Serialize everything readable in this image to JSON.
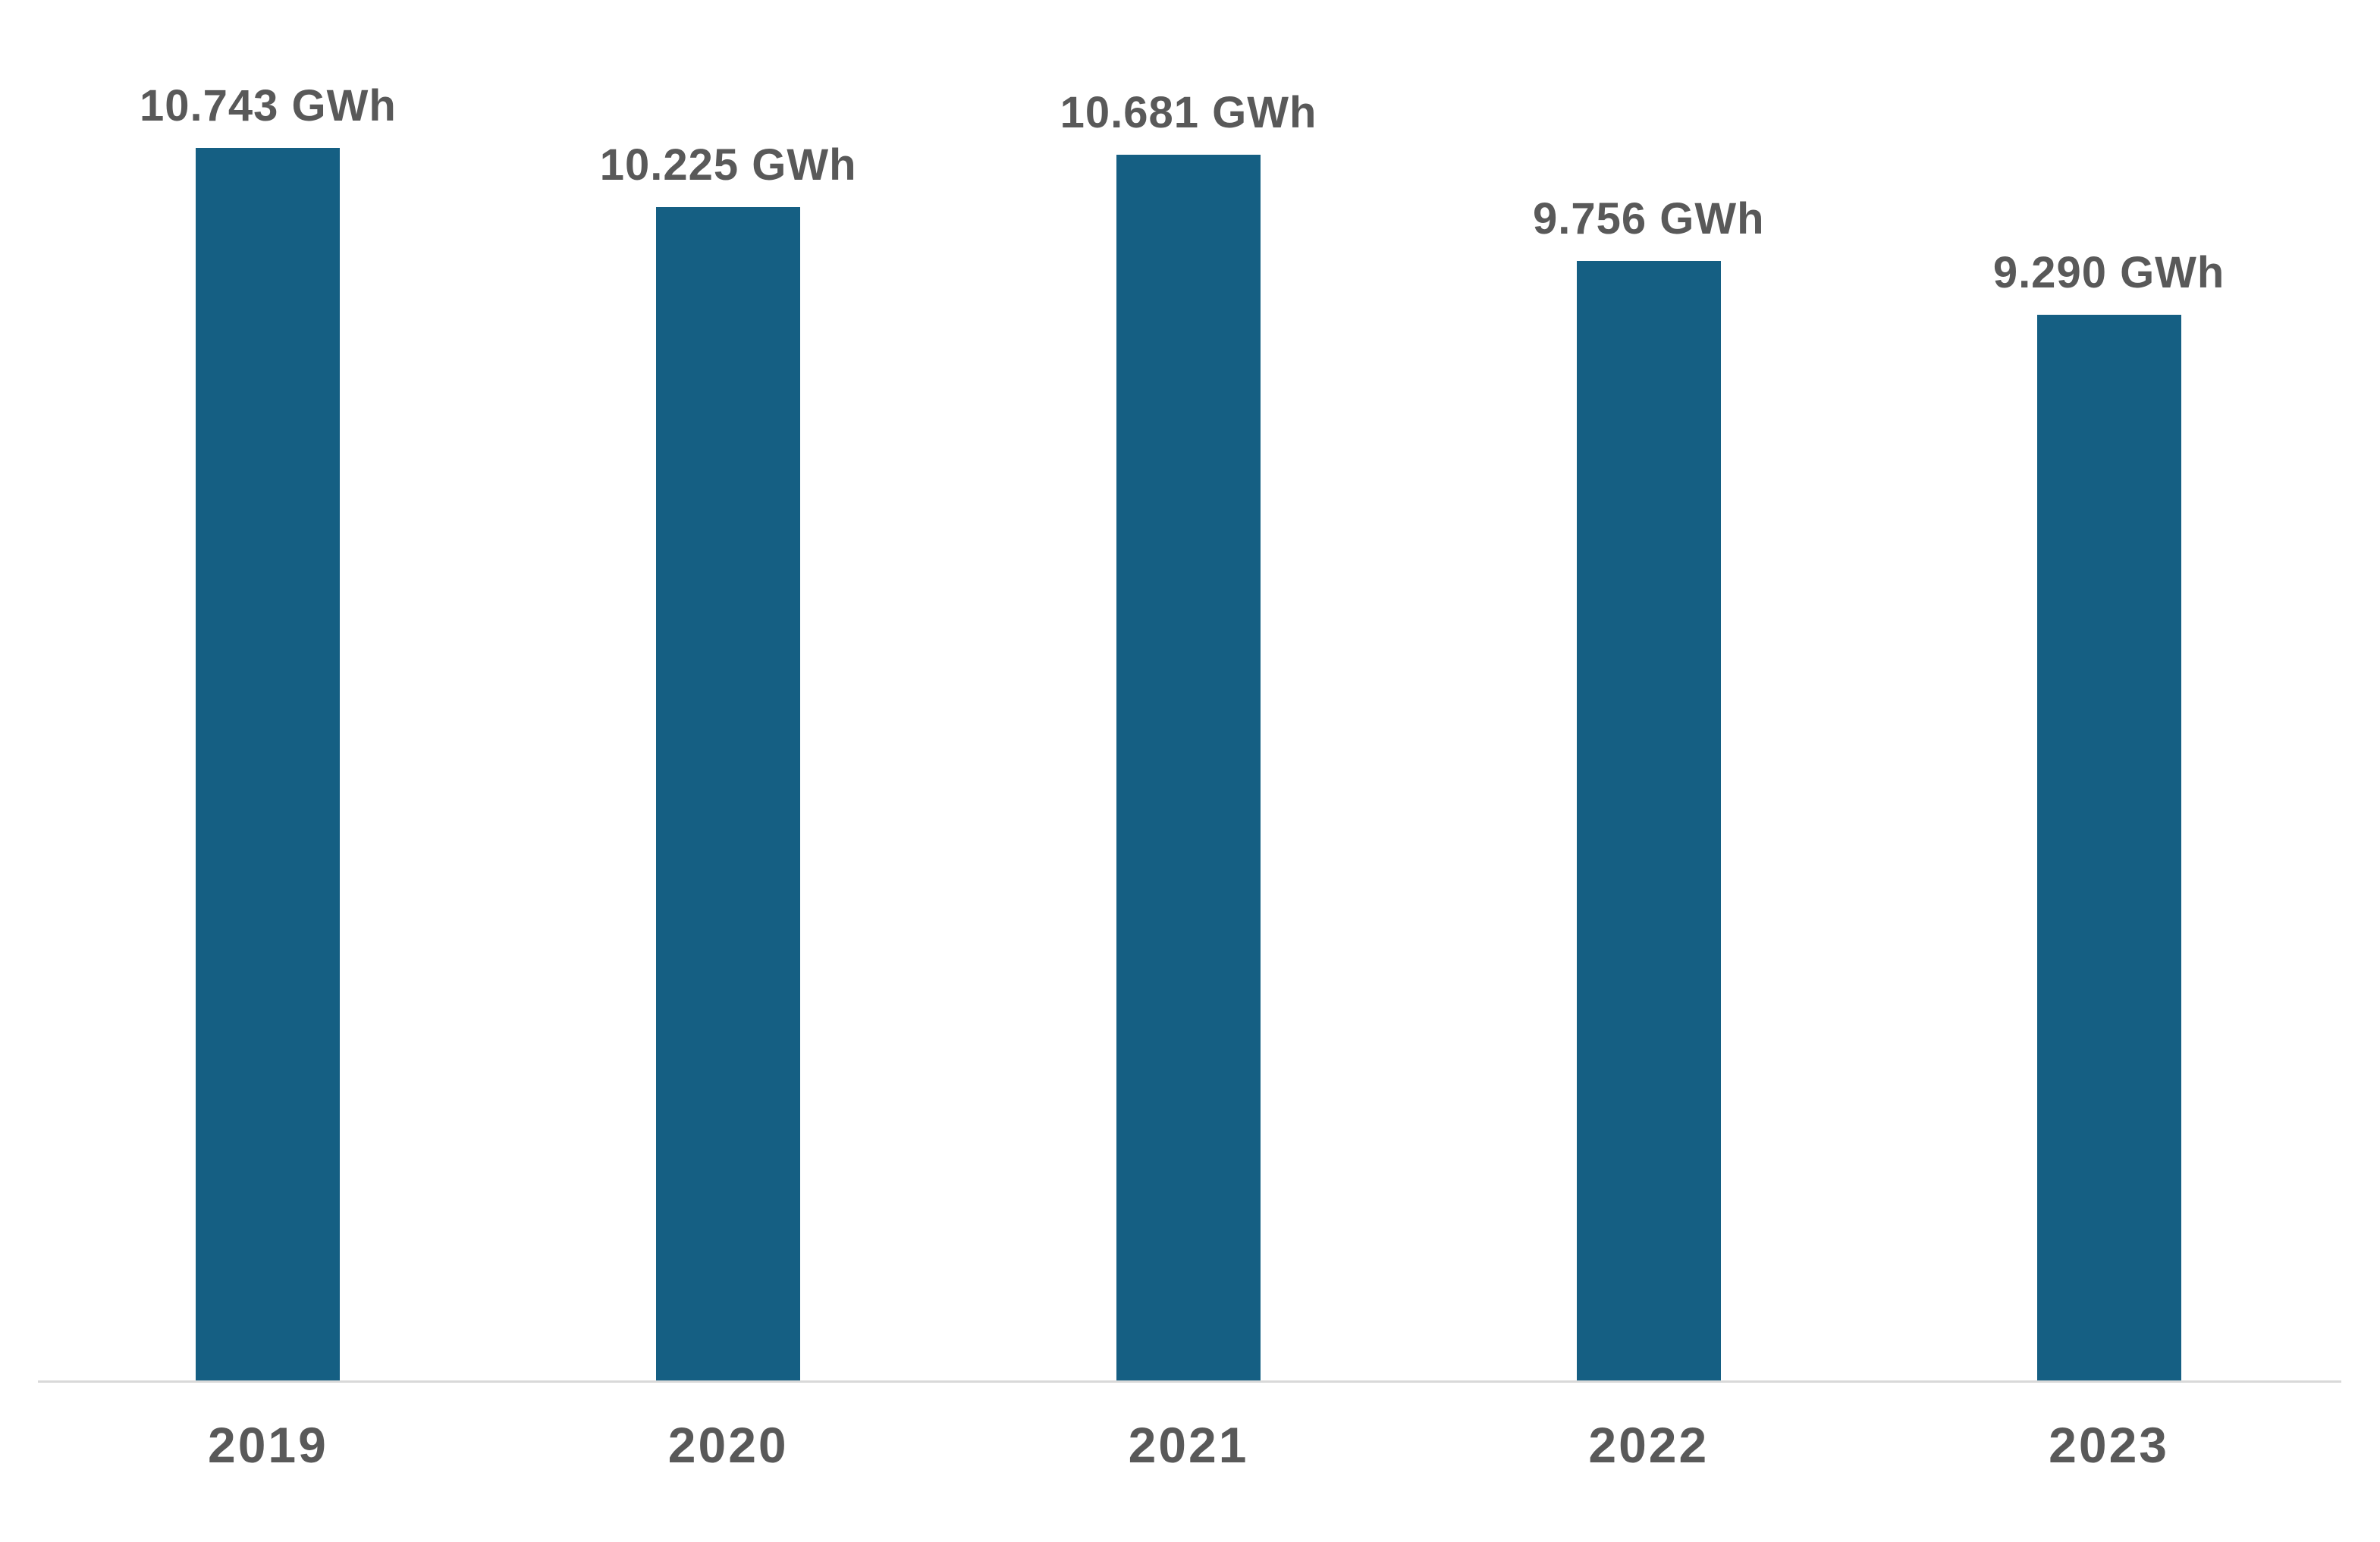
{
  "chart_data": {
    "type": "bar",
    "categories": [
      "2019",
      "2020",
      "2021",
      "2022",
      "2023"
    ],
    "values": [
      10743,
      10225,
      10681,
      9756,
      9290
    ],
    "value_labels": [
      "10.743 GWh",
      "10.225 GWh",
      "10.681 GWh",
      "9.756 GWh",
      "9.290 GWh"
    ],
    "unit": "GWh",
    "title": "",
    "xlabel": "",
    "ylabel": "",
    "ylim": [
      0,
      10743
    ],
    "grid": false,
    "legend": false,
    "bar_color": "#155F83",
    "label_color": "#595959",
    "axis_line_color": "#D9D9D9",
    "background": "#FFFFFF"
  }
}
